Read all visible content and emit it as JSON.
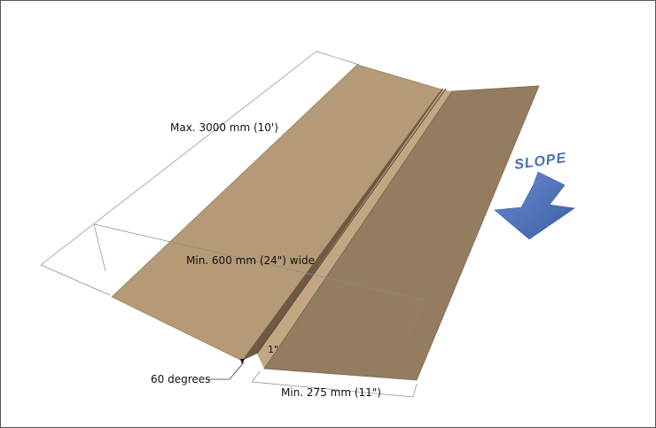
{
  "labels": {
    "length": "Max. 3000 mm (10')",
    "width": "Min. 600 mm (24\") wide",
    "flange": "Min. 275 mm (11\")",
    "angle": "60 degrees",
    "rib_height": "1\""
  },
  "slope": {
    "text": "SLOPE",
    "direction_icon": "arrow-down-left-icon"
  },
  "colors": {
    "left_panel": "#b49a77",
    "right_panel": "#947c61",
    "rib_top": "#c2a882",
    "rib_face": "#6e5a44",
    "dimension_lines": "#8a8a8a",
    "slope_arrow": "#4a6eb3"
  }
}
